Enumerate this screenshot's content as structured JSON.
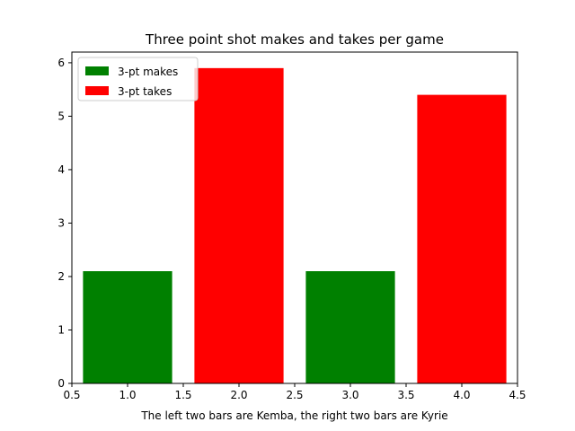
{
  "chart_data": {
    "type": "bar",
    "title": "Three point shot makes and takes per game",
    "xlabel": "The left two bars are Kemba, the right two bars are Kyrie",
    "ylabel": "",
    "xlim": [
      0.5,
      4.5
    ],
    "ylim": [
      0,
      6.2
    ],
    "bar_width": 0.8,
    "x_ticks": [
      0.5,
      1.0,
      1.5,
      2.0,
      2.5,
      3.0,
      3.5,
      4.0,
      4.5
    ],
    "x_tick_labels": [
      "0.5",
      "1.0",
      "1.5",
      "2.0",
      "2.5",
      "3.0",
      "3.5",
      "4.0",
      "4.5"
    ],
    "y_ticks": [
      0,
      1,
      2,
      3,
      4,
      5,
      6
    ],
    "y_tick_labels": [
      "0",
      "1",
      "2",
      "3",
      "4",
      "5",
      "6"
    ],
    "grid": false,
    "legend_position": "top-left",
    "series": [
      {
        "name": "3-pt makes",
        "color": "#008000",
        "x": [
          1,
          3
        ],
        "values": [
          2.1,
          2.1
        ]
      },
      {
        "name": "3-pt takes",
        "color": "#ff0000",
        "x": [
          2,
          4
        ],
        "values": [
          5.9,
          5.4
        ]
      }
    ]
  }
}
